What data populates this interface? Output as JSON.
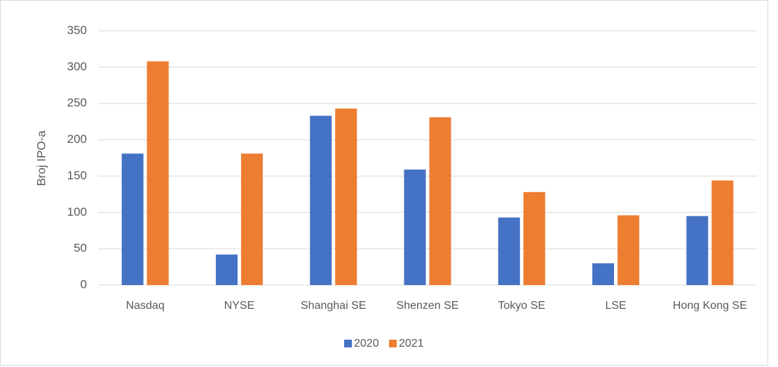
{
  "chart_data": {
    "type": "bar",
    "categories": [
      "Nasdaq",
      "NYSE",
      "Shanghai SE",
      "Shenzen SE",
      "Tokyo SE",
      "LSE",
      "Hong Kong SE"
    ],
    "series": [
      {
        "name": "2020",
        "color": "#4472c4",
        "values": [
          181,
          42,
          233,
          159,
          93,
          30,
          95
        ]
      },
      {
        "name": "2021",
        "color": "#ed7d31",
        "values": [
          308,
          181,
          243,
          231,
          128,
          96,
          144
        ]
      }
    ],
    "ylabel": "Broj IPO-a",
    "ylim": [
      0,
      350
    ],
    "yticks": [
      0,
      50,
      100,
      150,
      200,
      250,
      300,
      350
    ],
    "grid": true,
    "legend": "bottom"
  }
}
